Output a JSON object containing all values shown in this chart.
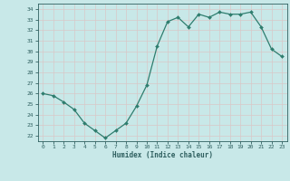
{
  "x": [
    0,
    1,
    2,
    3,
    4,
    5,
    6,
    7,
    8,
    9,
    10,
    11,
    12,
    13,
    14,
    15,
    16,
    17,
    18,
    19,
    20,
    21,
    22,
    23
  ],
  "y": [
    26,
    25.8,
    25.2,
    24.5,
    23.2,
    22.5,
    21.8,
    22.5,
    23.2,
    24.8,
    26.8,
    30.5,
    32.8,
    33.2,
    32.3,
    33.5,
    33.2,
    33.7,
    33.5,
    33.5,
    33.7,
    32.3,
    30.2,
    29.5
  ],
  "xlabel": "Humidex (Indice chaleur)",
  "ylim": [
    21.5,
    34.5
  ],
  "yticks": [
    22,
    23,
    24,
    25,
    26,
    27,
    28,
    29,
    30,
    31,
    32,
    33,
    34
  ],
  "xlim": [
    -0.5,
    23.5
  ],
  "xticks": [
    0,
    1,
    2,
    3,
    4,
    5,
    6,
    7,
    8,
    9,
    10,
    11,
    12,
    13,
    14,
    15,
    16,
    17,
    18,
    19,
    20,
    21,
    22,
    23
  ],
  "line_color": "#2e7d6e",
  "marker_color": "#2e7d6e",
  "bg_color": "#c8e8e8",
  "grid_color": "#b8d8d8",
  "label_color": "#2e5f5f"
}
